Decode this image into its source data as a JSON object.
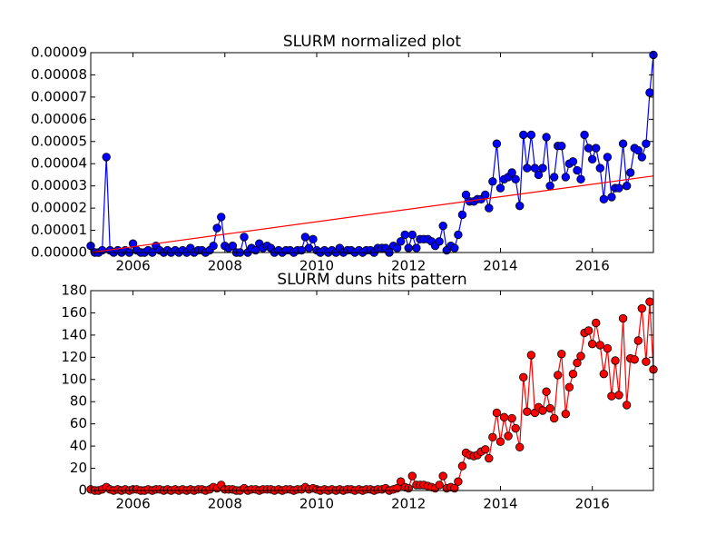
{
  "chart_data": [
    {
      "type": "line",
      "title": "SLURM normalized plot",
      "xlim": [
        2005.08,
        2017.33
      ],
      "xticks": [
        2006,
        2008,
        2010,
        2012,
        2014,
        2016
      ],
      "ylim": [
        0,
        9e-05
      ],
      "yticks": [
        {
          "value": 0,
          "label": "0.00000"
        },
        {
          "value": 1e-05,
          "label": "0.00001"
        },
        {
          "value": 2e-05,
          "label": "0.00002"
        },
        {
          "value": 3e-05,
          "label": "0.00003"
        },
        {
          "value": 4e-05,
          "label": "0.00004"
        },
        {
          "value": 5e-05,
          "label": "0.00005"
        },
        {
          "value": 6e-05,
          "label": "0.00006"
        },
        {
          "value": 7e-05,
          "label": "0.00007"
        },
        {
          "value": 8e-05,
          "label": "0.00008"
        },
        {
          "value": 9e-05,
          "label": "0.00009"
        }
      ],
      "x": [
        2005.08,
        2005.17,
        2005.25,
        2005.33,
        2005.42,
        2005.5,
        2005.58,
        2005.67,
        2005.75,
        2005.83,
        2005.92,
        2006,
        2006.08,
        2006.17,
        2006.25,
        2006.33,
        2006.42,
        2006.5,
        2006.58,
        2006.67,
        2006.75,
        2006.83,
        2006.92,
        2007,
        2007.08,
        2007.17,
        2007.25,
        2007.33,
        2007.42,
        2007.5,
        2007.58,
        2007.67,
        2007.75,
        2007.83,
        2007.92,
        2008,
        2008.08,
        2008.17,
        2008.25,
        2008.33,
        2008.42,
        2008.5,
        2008.58,
        2008.67,
        2008.75,
        2008.83,
        2008.92,
        2009,
        2009.08,
        2009.17,
        2009.25,
        2009.33,
        2009.42,
        2009.5,
        2009.58,
        2009.67,
        2009.75,
        2009.83,
        2009.92,
        2010,
        2010.08,
        2010.17,
        2010.25,
        2010.33,
        2010.42,
        2010.5,
        2010.58,
        2010.67,
        2010.75,
        2010.83,
        2010.92,
        2011,
        2011.08,
        2011.17,
        2011.25,
        2011.33,
        2011.42,
        2011.5,
        2011.58,
        2011.67,
        2011.75,
        2011.83,
        2011.92,
        2012,
        2012.08,
        2012.17,
        2012.25,
        2012.33,
        2012.42,
        2012.5,
        2012.58,
        2012.67,
        2012.75,
        2012.83,
        2012.92,
        2013,
        2013.08,
        2013.17,
        2013.25,
        2013.33,
        2013.42,
        2013.5,
        2013.58,
        2013.67,
        2013.75,
        2013.83,
        2013.92,
        2014,
        2014.08,
        2014.17,
        2014.25,
        2014.33,
        2014.42,
        2014.5,
        2014.58,
        2014.67,
        2014.75,
        2014.83,
        2014.92,
        2015,
        2015.08,
        2015.17,
        2015.25,
        2015.33,
        2015.42,
        2015.5,
        2015.58,
        2015.67,
        2015.75,
        2015.83,
        2015.92,
        2016,
        2016.08,
        2016.17,
        2016.25,
        2016.33,
        2016.42,
        2016.5,
        2016.58,
        2016.67,
        2016.75,
        2016.83,
        2016.92,
        2017,
        2017.08,
        2017.17,
        2017.25,
        2017.33
      ],
      "series": [
        {
          "color": "#0000ff",
          "markers": true,
          "values": [
            3e-06,
            0,
            0,
            1e-06,
            4.3e-05,
            1e-06,
            0,
            1e-06,
            0,
            1e-06,
            0,
            4e-06,
            1e-06,
            0,
            0,
            1e-06,
            0,
            3e-06,
            1e-06,
            0,
            1e-06,
            0,
            1e-06,
            0,
            1e-06,
            0,
            2e-06,
            0,
            1e-06,
            1e-06,
            0,
            1e-06,
            3e-06,
            1.1e-05,
            1.6e-05,
            3e-06,
            2e-06,
            3e-06,
            0,
            0,
            7e-06,
            0,
            2e-06,
            1e-06,
            4e-06,
            2e-06,
            3e-06,
            2e-06,
            0,
            1e-06,
            0,
            1e-06,
            1e-06,
            0,
            1e-06,
            1e-06,
            7e-06,
            2e-06,
            6e-06,
            1e-06,
            0,
            1e-06,
            0,
            1e-06,
            0,
            2e-06,
            0,
            1e-06,
            1e-06,
            0,
            1e-06,
            0,
            1e-06,
            1e-06,
            0,
            2e-06,
            2e-06,
            2e-06,
            0,
            3e-06,
            2e-06,
            5e-06,
            8e-06,
            2e-06,
            8e-06,
            2e-06,
            6e-06,
            6e-06,
            6e-06,
            5e-06,
            3e-06,
            5e-06,
            1.2e-05,
            1e-06,
            3e-06,
            2e-06,
            8e-06,
            1.7e-05,
            2.6e-05,
            2.3e-05,
            2.3e-05,
            2.4e-05,
            2.4e-05,
            2.6e-05,
            2e-05,
            3.2e-05,
            4.9e-05,
            2.9e-05,
            3.3e-05,
            3.4e-05,
            3.6e-05,
            3.3e-05,
            2.1e-05,
            5.3e-05,
            3.8e-05,
            5.3e-05,
            3.8e-05,
            3.5e-05,
            3.8e-05,
            5.2e-05,
            3e-05,
            3.4e-05,
            4.8e-05,
            4.8e-05,
            3.4e-05,
            4e-05,
            4.1e-05,
            3.7e-05,
            3.3e-05,
            5.3e-05,
            4.7e-05,
            4.2e-05,
            4.7e-05,
            3.8e-05,
            2.4e-05,
            4.3e-05,
            2.5e-05,
            2.9e-05,
            2.9e-05,
            4.9e-05,
            3e-05,
            3.6e-05,
            4.7e-05,
            4.6e-05,
            4.3e-05,
            4.9e-05,
            7.2e-05,
            8.9e-05
          ]
        },
        {
          "color": "#ff0000",
          "markers": false,
          "x": [
            2005.08,
            2017.33
          ],
          "values": [
            0,
            3.45e-05
          ]
        }
      ]
    },
    {
      "type": "line",
      "title": "SLURM duns hits pattern",
      "xlim": [
        2005.08,
        2017.33
      ],
      "xticks": [
        2006,
        2008,
        2010,
        2012,
        2014,
        2016
      ],
      "ylim": [
        0,
        180
      ],
      "yticks": [
        0,
        20,
        40,
        60,
        80,
        100,
        120,
        140,
        160,
        180
      ],
      "x": [
        2005.08,
        2005.17,
        2005.25,
        2005.33,
        2005.42,
        2005.5,
        2005.58,
        2005.67,
        2005.75,
        2005.83,
        2005.92,
        2006,
        2006.08,
        2006.17,
        2006.25,
        2006.33,
        2006.42,
        2006.5,
        2006.58,
        2006.67,
        2006.75,
        2006.83,
        2006.92,
        2007,
        2007.08,
        2007.17,
        2007.25,
        2007.33,
        2007.42,
        2007.5,
        2007.58,
        2007.67,
        2007.75,
        2007.83,
        2007.92,
        2008,
        2008.08,
        2008.17,
        2008.25,
        2008.33,
        2008.42,
        2008.5,
        2008.58,
        2008.67,
        2008.75,
        2008.83,
        2008.92,
        2009,
        2009.08,
        2009.17,
        2009.25,
        2009.33,
        2009.42,
        2009.5,
        2009.58,
        2009.67,
        2009.75,
        2009.83,
        2009.92,
        2010,
        2010.08,
        2010.17,
        2010.25,
        2010.33,
        2010.42,
        2010.5,
        2010.58,
        2010.67,
        2010.75,
        2010.83,
        2010.92,
        2011,
        2011.08,
        2011.17,
        2011.25,
        2011.33,
        2011.42,
        2011.5,
        2011.58,
        2011.67,
        2011.75,
        2011.83,
        2011.92,
        2012,
        2012.08,
        2012.17,
        2012.25,
        2012.33,
        2012.42,
        2012.5,
        2012.58,
        2012.67,
        2012.75,
        2012.83,
        2012.92,
        2013,
        2013.08,
        2013.17,
        2013.25,
        2013.33,
        2013.42,
        2013.5,
        2013.58,
        2013.67,
        2013.75,
        2013.83,
        2013.92,
        2014,
        2014.08,
        2014.17,
        2014.25,
        2014.33,
        2014.42,
        2014.5,
        2014.58,
        2014.67,
        2014.75,
        2014.83,
        2014.92,
        2015,
        2015.08,
        2015.17,
        2015.25,
        2015.33,
        2015.42,
        2015.5,
        2015.58,
        2015.67,
        2015.75,
        2015.83,
        2015.92,
        2016,
        2016.08,
        2016.17,
        2016.25,
        2016.33,
        2016.42,
        2016.5,
        2016.58,
        2016.67,
        2016.75,
        2016.83,
        2016.92,
        2017,
        2017.08,
        2017.17,
        2017.25,
        2017.33
      ],
      "series": [
        {
          "color": "#ff0000",
          "markers": true,
          "values": [
            1,
            0,
            0,
            1,
            3,
            1,
            0,
            1,
            0,
            1,
            0,
            1,
            1,
            0,
            0,
            1,
            0,
            1,
            1,
            0,
            1,
            0,
            1,
            0,
            1,
            0,
            1,
            0,
            1,
            1,
            0,
            1,
            3,
            2,
            5,
            1,
            1,
            1,
            0,
            0,
            2,
            0,
            1,
            1,
            0,
            1,
            1,
            1,
            0,
            1,
            0,
            1,
            1,
            0,
            1,
            1,
            3,
            1,
            2,
            1,
            0,
            1,
            0,
            1,
            0,
            1,
            0,
            1,
            1,
            0,
            1,
            0,
            1,
            1,
            0,
            1,
            1,
            2,
            0,
            1,
            2,
            8,
            3,
            2,
            13,
            5,
            5,
            5,
            4,
            3,
            2,
            5,
            13,
            2,
            3,
            2,
            8,
            22,
            34,
            32,
            31,
            32,
            35,
            37,
            29,
            48,
            70,
            44,
            66,
            49,
            65,
            56,
            39,
            102,
            71,
            122,
            70,
            75,
            72,
            89,
            74,
            65,
            104,
            123,
            69,
            93,
            105,
            115,
            121,
            142,
            144,
            132,
            151,
            131,
            105,
            128,
            85,
            117,
            86,
            155,
            77,
            119,
            118,
            135,
            164,
            116,
            170,
            109
          ]
        }
      ]
    }
  ]
}
